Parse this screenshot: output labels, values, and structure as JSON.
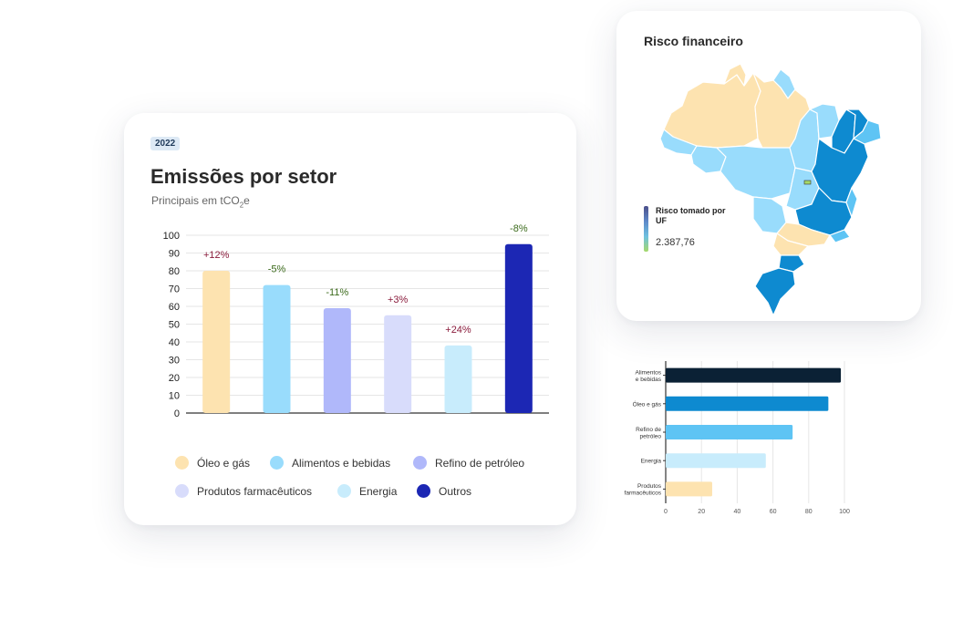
{
  "emissions_card": {
    "badge": "2022",
    "title": "Emissões por setor",
    "subtitle_main": "Principais em tCO",
    "subtitle_sub": "2",
    "subtitle_tail": "e"
  },
  "map_card": {
    "title": "Risco financeiro",
    "legend_label": "Risco tomado por UF",
    "legend_value": "2.387,76"
  },
  "chart_data": [
    {
      "type": "bar",
      "title": "Emissões por setor",
      "subtitle": "Principais em tCO2e",
      "categories": [
        "Óleo e gás",
        "Alimentos e bebidas",
        "Refino de petróleo",
        "Produtos farmacêuticos",
        "Energia",
        "Outros"
      ],
      "values": [
        80,
        72,
        59,
        55,
        38,
        95
      ],
      "change_labels": [
        "+12%",
        "-5%",
        "-11%",
        "+3%",
        "+24%",
        "-8%"
      ],
      "change_colors": [
        "#8a1c3c",
        "#3c6b1c",
        "#3c6b1c",
        "#8a1c3c",
        "#8a1c3c",
        "#3c6b1c"
      ],
      "colors": [
        "#fde3b0",
        "#99dcfc",
        "#b0b8fa",
        "#d8dcfb",
        "#c8ecfc",
        "#1c27b4"
      ],
      "yticks": [
        "100",
        "90",
        "80",
        "70",
        "60",
        "50",
        "40",
        "30",
        "20",
        "10",
        "0"
      ],
      "ylim": [
        0,
        100
      ],
      "grid": true,
      "legend_position": "bottom"
    },
    {
      "type": "bar",
      "orientation": "horizontal",
      "categories": [
        [
          "Alimentos",
          "e bebidas"
        ],
        [
          "Óleo e gás"
        ],
        [
          "Refino de",
          "petróleo"
        ],
        [
          "Energia"
        ],
        [
          "Produtos",
          "farmacêuticos"
        ]
      ],
      "values": [
        98,
        91,
        71,
        56,
        26
      ],
      "colors": [
        "#0b2135",
        "#0e8ad0",
        "#5ec4f4",
        "#c8ecfc",
        "#fde3b0"
      ],
      "xticks": [
        "0",
        "20",
        "40",
        "60",
        "80",
        "100"
      ],
      "xlim": [
        0,
        100
      ],
      "grid": true
    }
  ]
}
